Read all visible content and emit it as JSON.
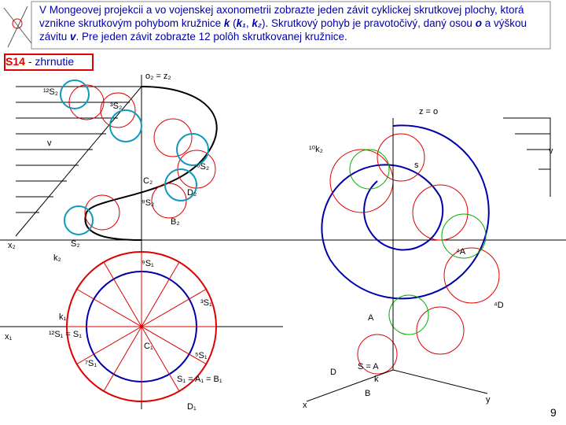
{
  "header": {
    "segments": [
      "V Mongeovej projekcii a vo vojenskej axonometrii zobrazte jeden závit cyklickej skrutkovej plochy, ktorá vznikne skrutkovým pohybom kružnice ",
      "k",
      " (",
      "k₁",
      ", ",
      "k₂",
      "). Skrutkový pohyb je pravotočivý, daný osou ",
      "o",
      " a výškou závitu ",
      "v",
      ". Pre jeden závit zobrazte 12 polôh skrutkovanej kružnice."
    ]
  },
  "badge": {
    "code": "S14",
    "text": "- zhrnutie"
  },
  "labels": [
    "o₂ = z₂",
    "z = o",
    "v",
    "v",
    "x₂",
    "k₂",
    "x₁",
    "k₁",
    "¹²S₁ = S₁",
    "C₁",
    "D₁",
    "x",
    "y",
    "D",
    "B",
    "s",
    "A",
    "⁴D",
    "S = A",
    "¹²S₂",
    "³S₂",
    "⁶S₂",
    "⁹S₂",
    "S₂",
    "D₂",
    "B₂",
    "C₂",
    "⁹S₁",
    "³S₁",
    "¹⁰k₂",
    "k",
    "S₁ = A₁ = B₁",
    "⁴A",
    "⁵S₁",
    "⁷S₁"
  ],
  "page_number": "9"
}
